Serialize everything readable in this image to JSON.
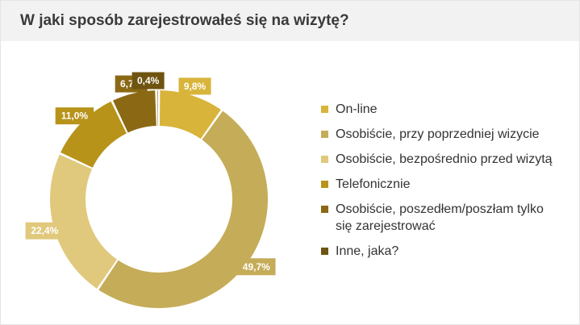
{
  "title": "W jaki sposób zarejestrowałeś się na wizytę?",
  "chart_data": {
    "type": "pie",
    "variant": "donut",
    "legend_position": "right",
    "categories": [
      "On-line",
      "Osobiście, przy poprzedniej wizycie",
      "Osobiście, bezpośrednio przed wizytą",
      "Telefonicznie",
      "Osobiście, poszedłem/poszłam tylko się zarejestrować",
      "Inne, jaka?"
    ],
    "values": [
      9.8,
      49.7,
      22.4,
      11.0,
      6.7,
      0.4
    ],
    "value_labels": [
      "9,8%",
      "49,7%",
      "22,4%",
      "11,0%",
      "6,7%",
      "0,4%"
    ],
    "colors": [
      "#d8b43a",
      "#c5ac58",
      "#e0c97c",
      "#b8931a",
      "#8b6914",
      "#6e5410"
    ]
  }
}
